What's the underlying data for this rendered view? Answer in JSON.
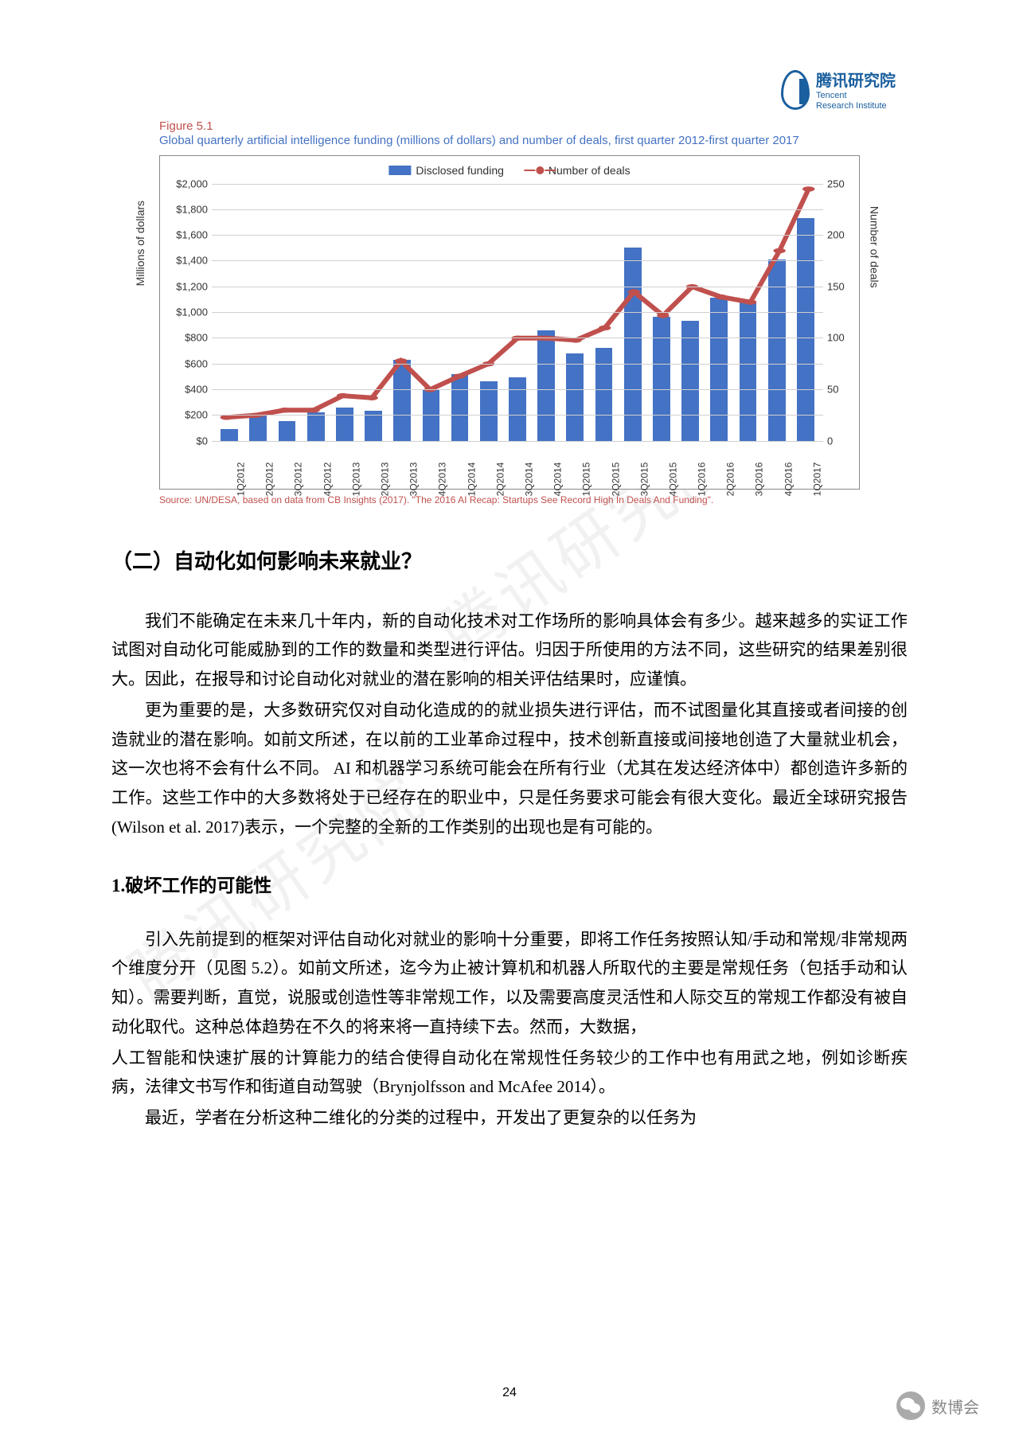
{
  "logo": {
    "cn": "腾讯研究院",
    "en1": "Tencent",
    "en2": "Research Institute"
  },
  "figure": {
    "num": "Figure 5.1",
    "title": "Global quarterly artificial intelligence funding (millions of dollars) and number of deals, first quarter 2012-first quarter 2017",
    "legend_bar": "Disclosed funding",
    "legend_line": "Number of deals",
    "y_left_label": "Millions of dollars",
    "y_right_label": "Number of deals",
    "y_left_max": 2000,
    "y_left_step": 200,
    "y_left_prefix": "$",
    "y_right_max": 250,
    "y_right_step": 50,
    "categories": [
      "1Q2012",
      "2Q2012",
      "3Q2012",
      "4Q2012",
      "1Q2013",
      "2Q2013",
      "3Q2013",
      "4Q2013",
      "1Q2014",
      "2Q2014",
      "3Q2014",
      "4Q2014",
      "1Q2015",
      "2Q2015",
      "3Q2015",
      "4Q2015",
      "1Q2016",
      "2Q2016",
      "3Q2016",
      "4Q2016",
      "1Q2017"
    ],
    "bar_values": [
      90,
      210,
      150,
      220,
      260,
      230,
      630,
      400,
      520,
      460,
      490,
      860,
      680,
      720,
      1500,
      960,
      930,
      1110,
      1080,
      1410,
      1730
    ],
    "line_values": [
      23,
      25,
      30,
      30,
      44,
      42,
      78,
      50,
      63,
      75,
      100,
      100,
      98,
      110,
      145,
      122,
      150,
      140,
      135,
      185,
      245
    ],
    "bar_color": "#4472c4",
    "line_color": "#c0504d",
    "grid_color": "#d0d0d0",
    "source": "Source: UN/DESA, based on data from CB Insights (2017). \"The 2016 AI Recap: Startups See Record High In Deals And Funding\"."
  },
  "heading1": "（二）自动化如何影响未来就业？",
  "para1": "我们不能确定在未来几十年内，新的自动化技术对工作场所的影响具体会有多少。越来越多的实证工作试图对自动化可能威胁到的工作的数量和类型进行评估。归因于所使用的方法不同，这些研究的结果差别很大。因此，在报导和讨论自动化对就业的潜在影响的相关评估结果时，应谨慎。",
  "para2": "更为重要的是，大多数研究仅对自动化造成的的就业损失进行评估，而不试图量化其直接或者间接的创造就业的潜在影响。如前文所述，在以前的工业革命过程中，技术创新直接或间接地创造了大量就业机会，这一次也将不会有什么不同。 AI 和机器学习系统可能会在所有行业（尤其在发达经济体中）都创造许多新的工作。这些工作中的大多数将处于已经存在的职业中，只是任务要求可能会有很大变化。最近全球研究报告 (Wilson et al. 2017)表示，一个完整的全新的工作类别的出现也是有可能的。",
  "subheading": "1.破坏工作的可能性",
  "para3": "引入先前提到的框架对评估自动化对就业的影响十分重要，即将工作任务按照认知/手动和常规/非常规两个维度分开（见图 5.2）。如前文所述，迄今为止被计算机和机器人所取代的主要是常规任务（包括手动和认知）。需要判断，直觉，说服或创造性等非常规工作，以及需要高度灵活性和人际交互的常规工作都没有被自动化取代。这种总体趋势在不久的将来将一直持续下去。然而，大数据，",
  "para3b": "人工智能和快速扩展的计算能力的结合使得自动化在常规性任务较少的工作中也有用武之地，例如诊断疾病，法律文书写作和街道自动驾驶（Brynjolfsson and McAfee 2014）。",
  "para4": "最近，学者在分析这种二维化的分类的过程中，开发出了更复杂的以任务为",
  "page_num": "24",
  "watermark": "腾讯研究院",
  "footer": "数博会"
}
